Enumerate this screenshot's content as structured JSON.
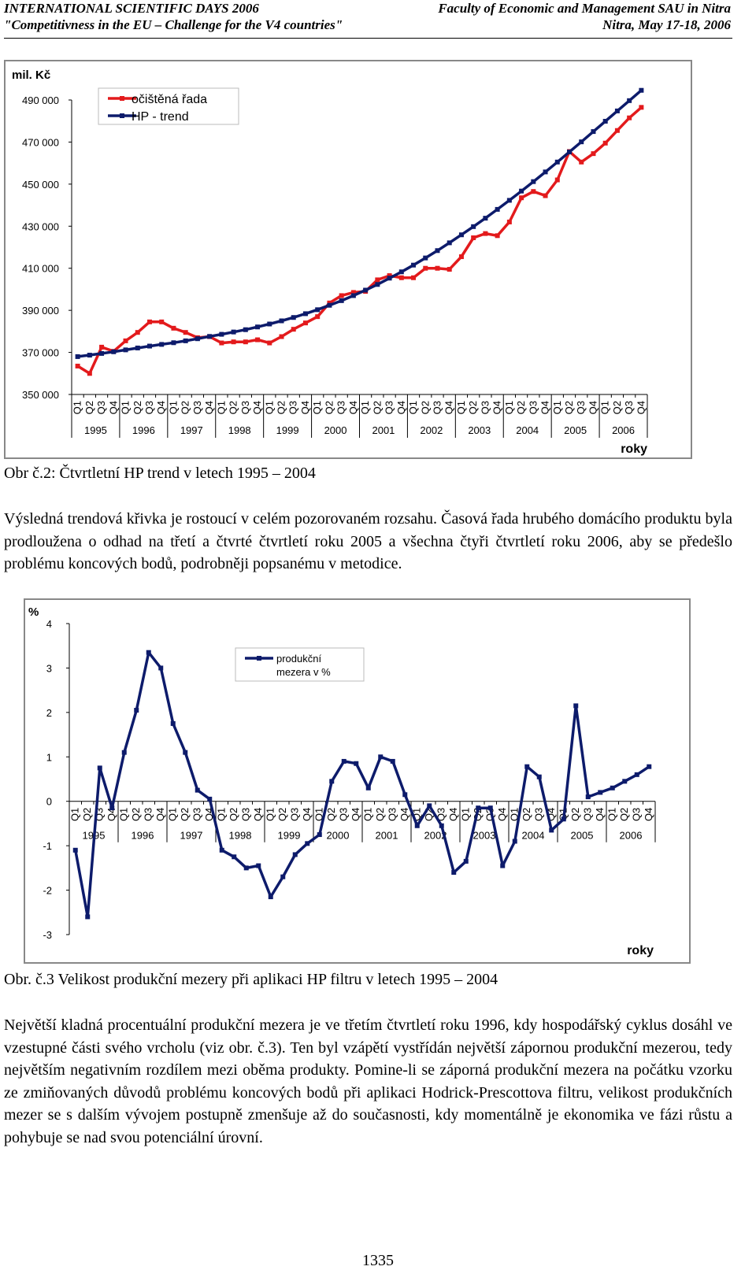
{
  "header": {
    "conference": "INTERNATIONAL SCIENTIFIC DAYS 2006",
    "faculty": "Faculty of Economic and Management SAU in Nitra",
    "subtitle": "\"Competitivness in the EU – Challenge for the V4 countries\"",
    "place_date": "Nitra, May 17-18, 2006"
  },
  "figure2": {
    "caption": "Obr č.2: Čtvrtletní HP trend v letech 1995 – 2004",
    "chart_data": {
      "type": "line",
      "title": "",
      "ylabel": "mil. Kč",
      "xlabel": "roky",
      "ylim": [
        350000,
        490000
      ],
      "yticks": [
        350000,
        370000,
        390000,
        410000,
        430000,
        450000,
        470000,
        490000
      ],
      "ytick_labels": [
        "350 000",
        "370 000",
        "390 000",
        "410 000",
        "430 000",
        "450 000",
        "470 000",
        "490 000"
      ],
      "quarter_labels": [
        "Q1",
        "Q2",
        "Q3",
        "Q4"
      ],
      "years": [
        "1995",
        "1996",
        "1997",
        "1998",
        "1999",
        "2000",
        "2001",
        "2002",
        "2003",
        "2004",
        "2005",
        "2006"
      ],
      "legend_position": "top-left",
      "series": [
        {
          "name": "očištěná řada",
          "color": "#E31A1C",
          "values": [
            363500,
            360000,
            372500,
            370500,
            375500,
            379500,
            384500,
            384500,
            381500,
            379500,
            377000,
            377500,
            374500,
            375000,
            375000,
            376000,
            374500,
            377500,
            381000,
            384000,
            387000,
            393500,
            397000,
            398500,
            399000,
            404500,
            406500,
            405500,
            405500,
            410000,
            410000,
            409500,
            415500,
            424500,
            426500,
            425500,
            432000,
            443500,
            446500,
            444500,
            452000,
            465500,
            460500,
            464500,
            469500,
            475500,
            481500,
            486500
          ],
          "marker": "square"
        },
        {
          "name": "HP - trend",
          "color": "#0D1B6B",
          "values": [
            368000,
            368700,
            369500,
            370300,
            371200,
            372100,
            373000,
            373800,
            374600,
            375500,
            376500,
            377600,
            378600,
            379700,
            380800,
            382100,
            383500,
            385000,
            386600,
            388400,
            390300,
            392400,
            394600,
            397000,
            399600,
            402300,
            405300,
            408300,
            411500,
            414900,
            418400,
            422100,
            425900,
            429800,
            433800,
            438000,
            442300,
            446700,
            451200,
            455800,
            460500,
            465300,
            470100,
            475000,
            479900,
            484800,
            489700,
            494600
          ],
          "marker": "square"
        }
      ]
    }
  },
  "paragraph1": "Výsledná trendová křivka je rostoucí v celém pozorovaném rozsahu. Časová řada hrubého domácího produktu byla prodloužena o odhad na třetí a čtvrté čtvrtletí roku 2005 a všechna čtyři čtvrtletí roku 2006, aby se předešlo problému koncových bodů, podrobněji popsanému v metodice.",
  "figure3": {
    "caption": "Obr. č.3 Velikost produkční mezery při aplikaci HP filtru v letech 1995 – 2004",
    "chart_data": {
      "type": "line",
      "title": "",
      "ylabel": "%",
      "xlabel": "roky",
      "ylim": [
        -3,
        4
      ],
      "yticks": [
        -3,
        -2,
        -1,
        0,
        1,
        2,
        3,
        4
      ],
      "ytick_labels": [
        "-3",
        "-2",
        "-1",
        "0",
        "1",
        "2",
        "3",
        "4"
      ],
      "quarter_labels": [
        "Q1",
        "Q2",
        "Q3",
        "Q4"
      ],
      "years": [
        "1995",
        "1996",
        "1997",
        "1998",
        "1999",
        "2000",
        "2001",
        "2002",
        "2003",
        "2004",
        "2005",
        "2006"
      ],
      "legend_position": "top-center",
      "legend_lines": [
        "produkční",
        "mezera    v %"
      ],
      "series": [
        {
          "name": "produkční mezera v %",
          "color": "#0D1B6B",
          "values": [
            -1.1,
            -2.6,
            0.75,
            -0.15,
            1.1,
            2.05,
            3.35,
            3.0,
            1.75,
            1.1,
            0.25,
            0.05,
            -1.1,
            -1.25,
            -1.5,
            -1.45,
            -2.15,
            -1.7,
            -1.2,
            -0.95,
            -0.75,
            0.45,
            0.9,
            0.85,
            0.3,
            1.0,
            0.9,
            0.15,
            -0.55,
            -0.1,
            -0.55,
            -1.6,
            -1.35,
            -0.15,
            -0.15,
            -1.45,
            -0.9,
            0.78,
            0.55,
            -0.65,
            -0.4,
            2.15,
            0.1,
            0.2,
            0.3,
            0.45,
            0.6,
            0.78
          ],
          "marker": "square"
        }
      ]
    }
  },
  "paragraph2": "Největší kladná procentuální produkční mezera je ve třetím čtvrtletí roku 1996, kdy hospodářský cyklus dosáhl ve vzestupné části svého vrcholu (viz obr. č.3). Ten byl vzápětí vystřídán největší zápornou produkční mezerou, tedy největším negativním rozdílem mezi oběma produkty. Pomine-li se záporná produkční mezera na počátku vzorku ze zmiňovaných důvodů problému koncových bodů při aplikaci Hodrick-Prescottova filtru, velikost produkčních mezer se s dalším vývojem postupně zmenšuje až do současnosti, kdy momentálně je ekonomika ve fázi růstu a pohybuje se nad svou potenciální úrovní.",
  "page_number": "1335"
}
